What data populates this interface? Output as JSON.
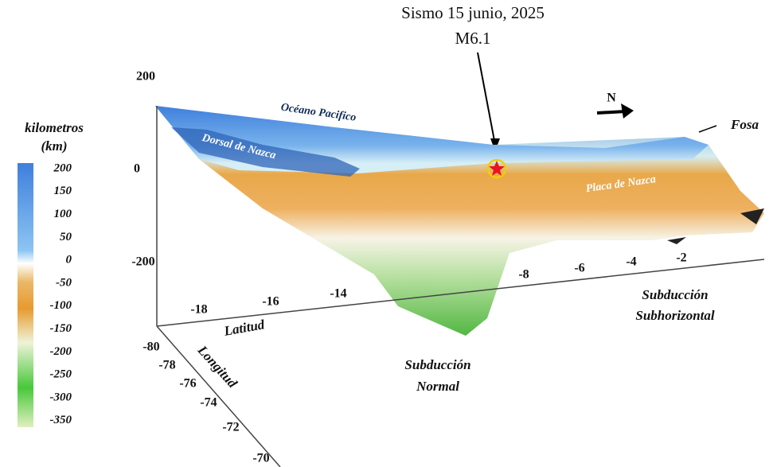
{
  "header": {
    "title": "Sismo 15 junio, 2025",
    "subtitle": "M6.1"
  },
  "colorbar": {
    "title": "kilometros",
    "unit": "(km)",
    "ticks": [
      200,
      150,
      100,
      50,
      0,
      -50,
      -100,
      -150,
      -200,
      -250,
      -300,
      -350
    ]
  },
  "axes": {
    "depth": {
      "ticks": [
        200,
        0,
        -200
      ]
    },
    "latitude": {
      "label": "Latitud",
      "ticks": [
        -18,
        -16,
        -14,
        -8,
        -6,
        -4,
        -2
      ]
    },
    "longitude": {
      "label": "Longitud",
      "ticks": [
        -80,
        -78,
        -76,
        -74,
        -72,
        -70
      ]
    }
  },
  "annotations": {
    "ocean": "Océano Pacifico",
    "ridge": "Dorsal de Nazca",
    "plate": "Placa de Nazca",
    "trench": "Fosa",
    "north": "N",
    "normal": [
      "Subducción",
      "Normal"
    ],
    "flat": [
      "Subducción",
      "Subhorizontal"
    ]
  }
}
